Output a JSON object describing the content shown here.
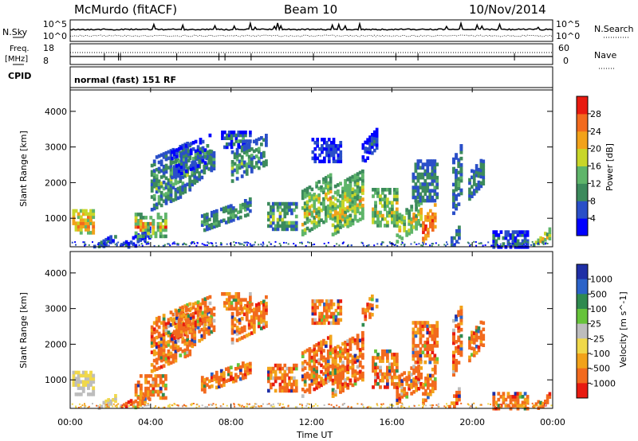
{
  "header": {
    "station": "McMurdo (fitACF)",
    "beam": "Beam 10",
    "date": "10/Nov/2014"
  },
  "noise_panel": {
    "left_label": "N.Sky",
    "right_label": "N.Search",
    "tick_top": "10^5",
    "tick_bottom": "10^0",
    "right_tick_top": "10^5",
    "right_tick_bottom": "10^0"
  },
  "freq_panel": {
    "left_label_1": "Freq.",
    "left_label_2": "[MHz]",
    "left_tick_top": "18",
    "left_tick_bottom": "8",
    "right_label": "Nave",
    "right_tick_top": "60",
    "right_tick_bottom": "0"
  },
  "cpid": {
    "label": "CPID",
    "text": "normal (fast) 151 RF"
  },
  "colors": {
    "power": [
      "#0000ff",
      "#2a4fc8",
      "#3c8a5c",
      "#5fb56a",
      "#c8d629",
      "#f2a21a",
      "#f26a1e",
      "#e81a10"
    ],
    "velocity": [
      "#1f2fa6",
      "#2b63c9",
      "#2f8a4f",
      "#66c33a",
      "#bdbdbd",
      "#f0d84a",
      "#f2a21a",
      "#f26a1e",
      "#e81a10"
    ]
  },
  "chart_data": [
    {
      "type": "heatmap",
      "name": "Power",
      "ylabel": "Slant Range [km]",
      "yticks": [
        "1000",
        "2000",
        "3000",
        "4000"
      ],
      "ylim": [
        200,
        4600
      ],
      "xlim_hours": [
        0,
        24
      ],
      "colorbar_label": "Power [dB]",
      "colorbar_ticks": [
        "4",
        "8",
        "12",
        "16",
        "20",
        "24",
        "28"
      ],
      "colorbar_range": [
        0,
        32
      ]
    },
    {
      "type": "heatmap",
      "name": "Velocity",
      "ylabel": "Slant Range [km]",
      "yticks": [
        "1000",
        "2000",
        "3000",
        "4000"
      ],
      "ylim": [
        200,
        4600
      ],
      "xlim_hours": [
        0,
        24
      ],
      "colorbar_label": "Velocity [m s^-1]",
      "colorbar_ticks": [
        "1000",
        "500",
        "100",
        "25",
        "-25",
        "-100",
        "-500",
        "-1000"
      ]
    }
  ],
  "x_axis": {
    "ticks": [
      "00:00",
      "04:00",
      "08:00",
      "12:00",
      "16:00",
      "20:00",
      "00:00"
    ],
    "label": "Time UT"
  }
}
